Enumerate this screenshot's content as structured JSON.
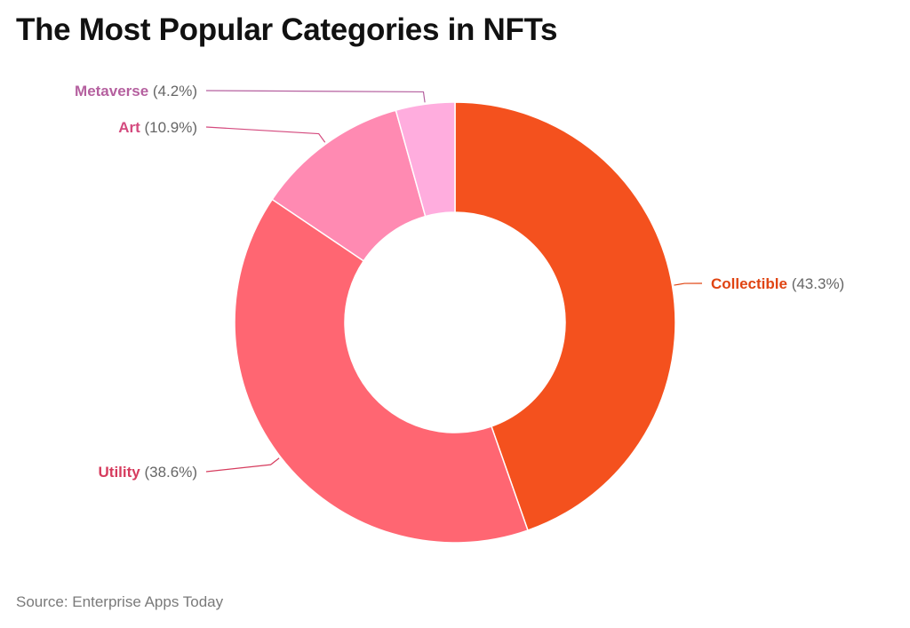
{
  "title": "The Most Popular Categories in NFTs",
  "source": "Source: Enterprise Apps Today",
  "chart_data": {
    "type": "pie",
    "donut": true,
    "title": "The Most Popular Categories in NFTs",
    "slices": [
      {
        "label": "Collectible",
        "value": 43.3,
        "value_label": "(43.3%)",
        "color": "#f4511e",
        "label_color": "#e04412"
      },
      {
        "label": "Utility",
        "value": 38.6,
        "value_label": "(38.6%)",
        "color": "#ff6672",
        "label_color": "#d63c5e"
      },
      {
        "label": "Art",
        "value": 10.9,
        "value_label": "(10.9%)",
        "color": "#ff8ab2",
        "label_color": "#d44a7e"
      },
      {
        "label": "Metaverse",
        "value": 4.2,
        "value_label": "(4.2%)",
        "color": "#ffadde",
        "label_color": "#b5609f"
      }
    ],
    "value_color": "#666666",
    "source": "Source: Enterprise Apps Today"
  }
}
